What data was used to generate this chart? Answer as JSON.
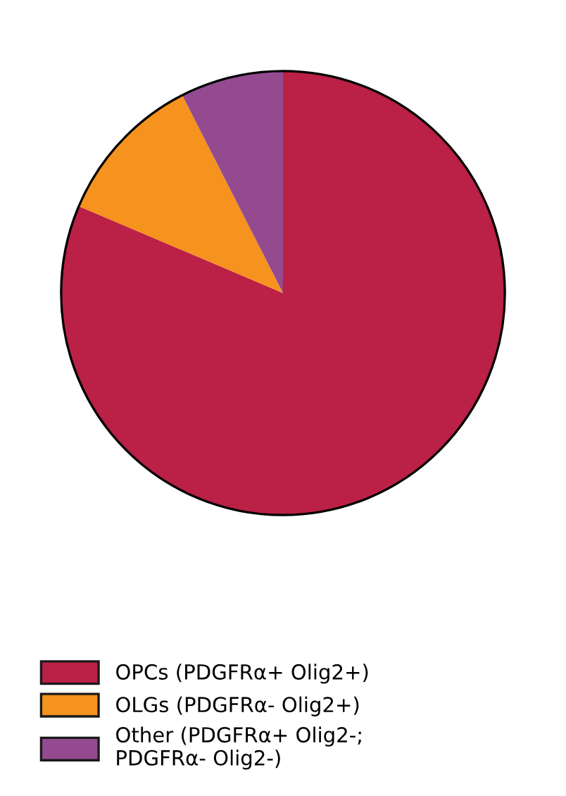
{
  "chart_data": {
    "type": "pie",
    "categories": [
      "OPCs (PDGFRα+ Olig2+)",
      "OLGs (PDGFRα- Olig2+)",
      "Other (PDGFRα+ Olig2-;\nPDGFRα- Olig2-)"
    ],
    "values": [
      81.4,
      11.1,
      7.5
    ],
    "colors": [
      "#bb2046",
      "#f6921e",
      "#934a8f"
    ],
    "legend": "bottom left"
  }
}
